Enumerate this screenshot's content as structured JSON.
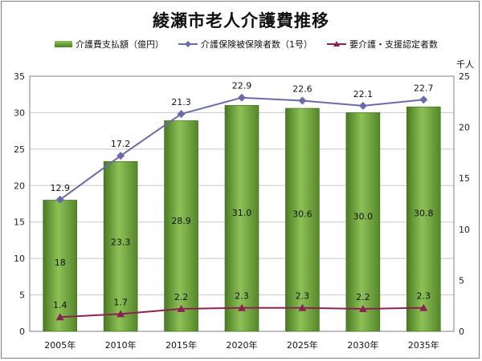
{
  "chart_data": {
    "type": "bar",
    "title": "綾瀬市老人介護費推移",
    "categories": [
      "2005年",
      "2010年",
      "2015年",
      "2020年",
      "2025年",
      "2030年",
      "2035年"
    ],
    "series": [
      {
        "name": "介護費支払額（億円）",
        "type": "bar",
        "axis": "left",
        "values": [
          18,
          23.3,
          28.9,
          31.0,
          30.6,
          30.0,
          30.8
        ],
        "labels": [
          "18",
          "23.3",
          "28.9",
          "31.0",
          "30.6",
          "30.0",
          "30.8"
        ],
        "color": "#6a9e35"
      },
      {
        "name": "介護保険被保険者数（1号）",
        "type": "line",
        "axis": "right",
        "values": [
          12.9,
          17.2,
          21.3,
          22.9,
          22.6,
          22.1,
          22.7
        ],
        "labels": [
          "12.9",
          "17.2",
          "21.3",
          "22.9",
          "22.6",
          "22.1",
          "22.7"
        ],
        "color": "#6b6ba8"
      },
      {
        "name": "要介護・支援認定者数",
        "type": "line",
        "axis": "right",
        "values": [
          1.4,
          1.7,
          2.2,
          2.3,
          2.3,
          2.2,
          2.3
        ],
        "labels": [
          "1.4",
          "1.7",
          "2.2",
          "2.3",
          "2.3",
          "2.2",
          "2.3"
        ],
        "color": "#8b2252"
      }
    ],
    "y_left": {
      "min": 0,
      "max": 35,
      "step": 5
    },
    "y_right": {
      "min": 0,
      "max": 25,
      "step": 5,
      "unit": "千人"
    },
    "grid": true,
    "legend": "top"
  }
}
